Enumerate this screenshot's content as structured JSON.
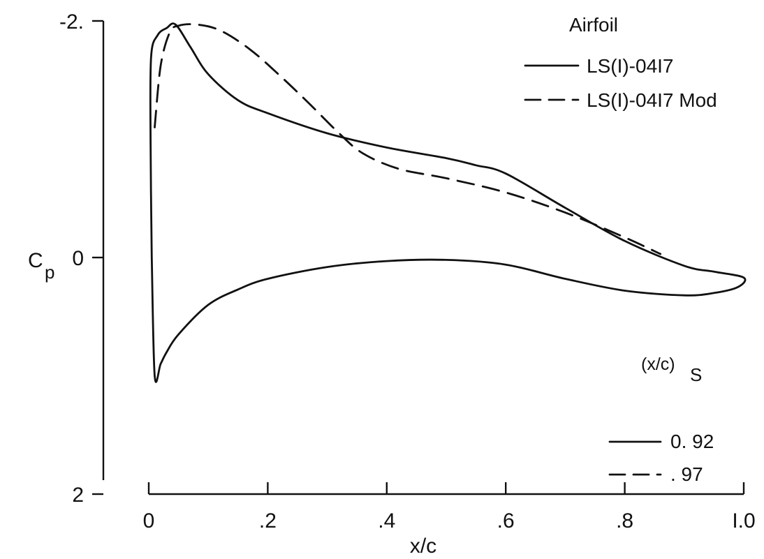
{
  "chart_data": {
    "type": "line",
    "xlabel": "x/c",
    "ylabel": "C",
    "ylabel_subscript": "p",
    "xlim": [
      0,
      1.0
    ],
    "ylim": [
      -2,
      2
    ],
    "y_inverted": true,
    "grid": false,
    "x_ticks": [
      {
        "value": 0,
        "label": "0"
      },
      {
        "value": 0.2,
        "label": ".2"
      },
      {
        "value": 0.4,
        "label": ".4"
      },
      {
        "value": 0.6,
        "label": ".6"
      },
      {
        "value": 0.8,
        "label": ".8"
      },
      {
        "value": 1.0,
        "label": "I.0"
      }
    ],
    "y_ticks": [
      {
        "value": -2,
        "label": "-2."
      },
      {
        "value": 0,
        "label": "0"
      },
      {
        "value": 2,
        "label": "2"
      }
    ],
    "legend_airfoil": {
      "title": "Airfoil",
      "placement": "top-right",
      "entries": [
        {
          "label": "LS(I)-04I7",
          "style": "solid"
        },
        {
          "label": "LS(I)-04I7 Mod",
          "style": "dashed"
        }
      ]
    },
    "legend_separation": {
      "title": "(x/c)",
      "title_subscript": "S",
      "placement": "bottom-right",
      "entries": [
        {
          "label": "0. 92",
          "style": "solid"
        },
        {
          "label": ". 97",
          "style": "dashed"
        }
      ]
    },
    "series": [
      {
        "name": "LS(I)-04I7",
        "style": "solid",
        "x": [
          0.005,
          0.003,
          0.004,
          0.015,
          0.03,
          0.045,
          0.07,
          0.1,
          0.15,
          0.2,
          0.3,
          0.4,
          0.5,
          0.55,
          0.6,
          0.7,
          0.8,
          0.9,
          0.95,
          1.0,
          0.99,
          0.95,
          0.9,
          0.8,
          0.7,
          0.6,
          0.5,
          0.4,
          0.3,
          0.2,
          0.15,
          0.1,
          0.05,
          0.03,
          0.02,
          0.01,
          0.005
        ],
        "y": [
          0.0,
          -1.0,
          -1.7,
          -1.88,
          -1.94,
          -1.97,
          -1.78,
          -1.55,
          -1.33,
          -1.22,
          -1.05,
          -0.93,
          -0.84,
          -0.78,
          -0.71,
          -0.42,
          -0.14,
          0.07,
          0.12,
          0.17,
          0.25,
          0.3,
          0.32,
          0.28,
          0.18,
          0.06,
          0.02,
          0.03,
          0.08,
          0.18,
          0.27,
          0.4,
          0.65,
          0.8,
          0.9,
          1.0,
          0.0
        ]
      },
      {
        "name": "LS(I)-04I7 Mod",
        "style": "dashed",
        "x": [
          0.01,
          0.02,
          0.035,
          0.05,
          0.08,
          0.12,
          0.17,
          0.22,
          0.27,
          0.32,
          0.36,
          0.42,
          0.5,
          0.6,
          0.7,
          0.8,
          0.86
        ],
        "y": [
          -1.1,
          -1.62,
          -1.9,
          -1.96,
          -1.97,
          -1.92,
          -1.76,
          -1.54,
          -1.3,
          -1.05,
          -0.88,
          -0.75,
          -0.67,
          -0.55,
          -0.38,
          -0.17,
          -0.03
        ]
      }
    ]
  }
}
